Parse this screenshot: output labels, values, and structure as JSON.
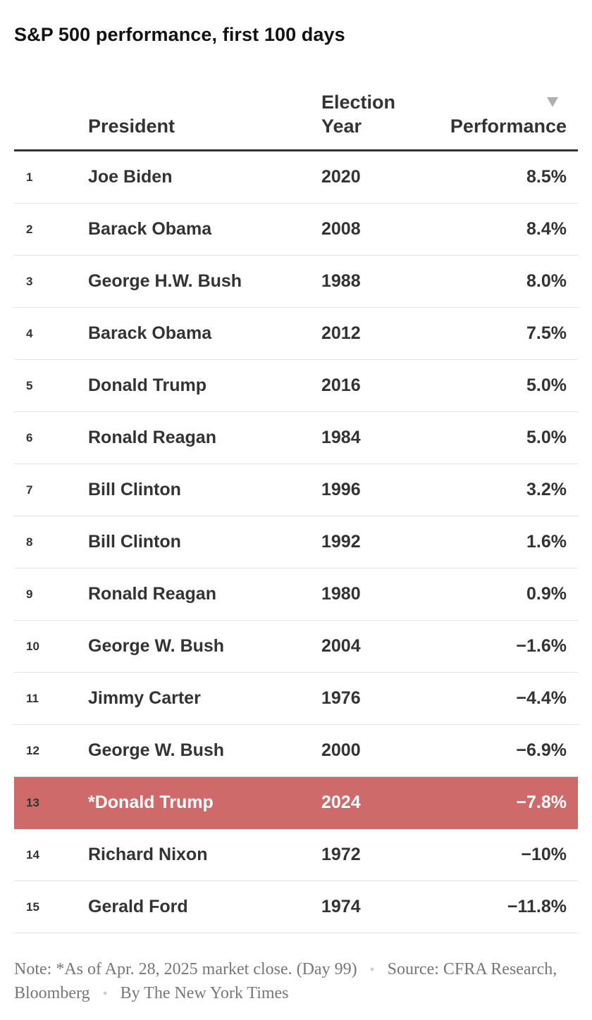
{
  "chart_data": {
    "type": "table",
    "title": "S&P 500 performance, first 100 days",
    "columns": [
      "President",
      "Election Year",
      "Performance"
    ],
    "column_header_lines": {
      "year": [
        "Election",
        "Year"
      ]
    },
    "sorted_by": "Performance",
    "sort_direction": "descending",
    "rows": [
      {
        "rank": "1",
        "president": "Joe Biden",
        "year": "2020",
        "performance": "8.5%",
        "value": 8.5
      },
      {
        "rank": "2",
        "president": "Barack Obama",
        "year": "2008",
        "performance": "8.4%",
        "value": 8.4
      },
      {
        "rank": "3",
        "president": "George H.W. Bush",
        "year": "1988",
        "performance": "8.0%",
        "value": 8.0
      },
      {
        "rank": "4",
        "president": "Barack Obama",
        "year": "2012",
        "performance": "7.5%",
        "value": 7.5
      },
      {
        "rank": "5",
        "president": "Donald Trump",
        "year": "2016",
        "performance": "5.0%",
        "value": 5.0
      },
      {
        "rank": "6",
        "president": "Ronald Reagan",
        "year": "1984",
        "performance": "5.0%",
        "value": 5.0
      },
      {
        "rank": "7",
        "president": "Bill Clinton",
        "year": "1996",
        "performance": "3.2%",
        "value": 3.2
      },
      {
        "rank": "8",
        "president": "Bill Clinton",
        "year": "1992",
        "performance": "1.6%",
        "value": 1.6
      },
      {
        "rank": "9",
        "president": "Ronald Reagan",
        "year": "1980",
        "performance": "0.9%",
        "value": 0.9
      },
      {
        "rank": "10",
        "president": "George W. Bush",
        "year": "2004",
        "performance": "−1.6%",
        "value": -1.6
      },
      {
        "rank": "11",
        "president": "Jimmy Carter",
        "year": "1976",
        "performance": "−4.4%",
        "value": -4.4
      },
      {
        "rank": "12",
        "president": "George W. Bush",
        "year": "2000",
        "performance": "−6.9%",
        "value": -6.9
      },
      {
        "rank": "13",
        "president": "*Donald Trump",
        "year": "2024",
        "performance": "−7.8%",
        "value": -7.8,
        "highlight": true
      },
      {
        "rank": "14",
        "president": "Richard Nixon",
        "year": "1972",
        "performance": "−10%",
        "value": -10
      },
      {
        "rank": "15",
        "president": "Gerald Ford",
        "year": "1974",
        "performance": "−11.8%",
        "value": -11.8
      }
    ],
    "colors": {
      "highlight_row": "#cf6a6a",
      "header_rule": "#333333",
      "row_rule": "#e2e2e2",
      "sort_arrow": "#b0b0b0"
    }
  },
  "footer": {
    "note": "Note: *As of Apr. 28, 2025 market close. (Day 99)",
    "source": "Source: CFRA Research, Bloomberg",
    "byline": "By The New York Times",
    "separator": "•"
  }
}
